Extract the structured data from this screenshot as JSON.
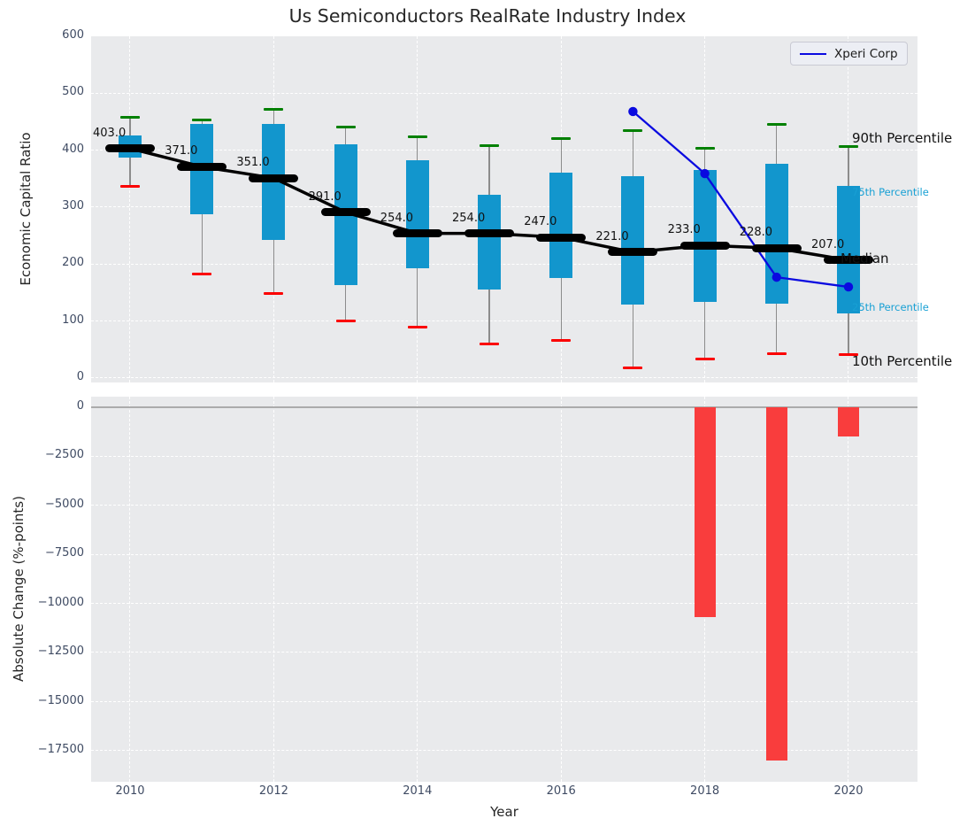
{
  "title": "Us Semiconductors RealRate Industry Index",
  "legend": {
    "label": "Xperi Corp"
  },
  "colors": {
    "box_fill": "#1296cd",
    "median_line": "#000000",
    "series_line": "#0a0ae0",
    "cap_high": "#008000",
    "cap_low": "#fb0000",
    "bar_negative": "#f93d3d",
    "panel_bg": "#e9eaec",
    "tick_text": "#3f4b63",
    "annotation_accent": "#18a0d4"
  },
  "chart_data": [
    {
      "type": "boxplot",
      "panel": "top",
      "title": "Us Semiconductors RealRate Industry Index",
      "ylabel": "Economic Capital Ratio",
      "ylim": [
        0,
        600
      ],
      "yticks": [
        600,
        500,
        400,
        300,
        200,
        100,
        0
      ],
      "xticks": [
        2010,
        2012,
        2014,
        2016,
        2018,
        2020
      ],
      "grid": true,
      "categories": [
        2010,
        2011,
        2012,
        2013,
        2014,
        2015,
        2016,
        2017,
        2018,
        2019,
        2020
      ],
      "p90": [
        458,
        453,
        471,
        441,
        423,
        408,
        420,
        434,
        404,
        445,
        406
      ],
      "p75": [
        426,
        446,
        446,
        411,
        383,
        321,
        361,
        354,
        365,
        376,
        337
      ],
      "median": [
        403,
        371,
        351,
        291,
        254,
        254,
        247,
        221,
        233,
        228,
        207
      ],
      "median_labels": [
        "403.0",
        "371.0",
        "351.0",
        "291.0",
        "254.0",
        "254.0",
        "247.0",
        "221.0",
        "233.0",
        "228.0",
        "207.0"
      ],
      "p25": [
        387,
        288,
        243,
        163,
        193,
        155,
        175,
        129,
        134,
        131,
        113
      ],
      "p10": [
        337,
        183,
        148,
        101,
        90,
        60,
        66,
        18,
        34,
        43,
        41
      ],
      "series": [
        {
          "name": "Xperi Corp",
          "x": [
            2017,
            2018,
            2019,
            2020
          ],
          "y": [
            468,
            359,
            177,
            160
          ]
        }
      ],
      "annotations": [
        {
          "text": "90th Percentile",
          "at_value": 420,
          "style": "major"
        },
        {
          "text": "75th Percentile",
          "at_value": 326,
          "style": "accent"
        },
        {
          "text": "Median",
          "at_value": 208,
          "style": "major"
        },
        {
          "text": "25th Percentile",
          "at_value": 124,
          "style": "accent"
        },
        {
          "text": "10th Percentile",
          "at_value": 28,
          "style": "major"
        }
      ],
      "legend_position": "upper right"
    },
    {
      "type": "bar",
      "panel": "bottom",
      "ylabel": "Absolute Change (%-points)",
      "xlabel": "Year",
      "ylim": [
        500,
        -19000
      ],
      "yticks": [
        0,
        -2500,
        -5000,
        -7500,
        -10000,
        -12500,
        -15000,
        -17500
      ],
      "xticks": [
        2010,
        2012,
        2014,
        2016,
        2018,
        2020
      ],
      "grid": true,
      "categories": [
        2018,
        2019,
        2020
      ],
      "values": [
        -10700,
        -18000,
        -1500
      ]
    }
  ]
}
